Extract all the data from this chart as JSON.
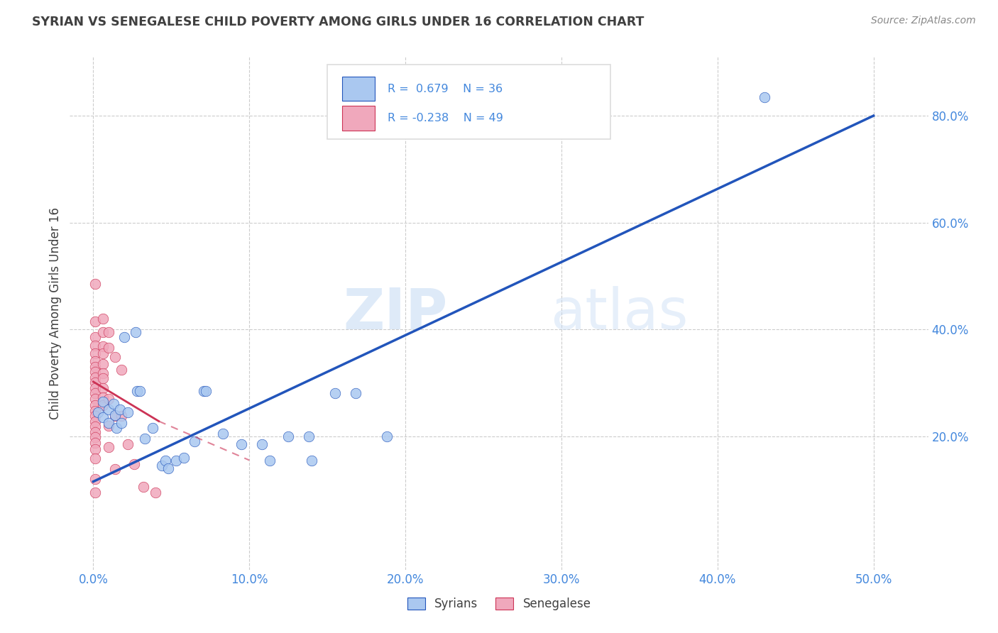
{
  "title": "SYRIAN VS SENEGALESE CHILD POVERTY AMONG GIRLS UNDER 16 CORRELATION CHART",
  "source": "Source: ZipAtlas.com",
  "ylabel": "Child Poverty Among Girls Under 16",
  "x_tick_labels": [
    "0.0%",
    "10.0%",
    "20.0%",
    "30.0%",
    "40.0%",
    "50.0%"
  ],
  "x_tick_values": [
    0.0,
    0.1,
    0.2,
    0.3,
    0.4,
    0.5
  ],
  "y_tick_labels": [
    "20.0%",
    "40.0%",
    "60.0%",
    "80.0%"
  ],
  "y_tick_values": [
    0.2,
    0.4,
    0.6,
    0.8
  ],
  "xlim": [
    -0.015,
    0.535
  ],
  "ylim": [
    -0.05,
    0.91
  ],
  "syrian_color": "#aac8f0",
  "senegalese_color": "#f0a8bc",
  "syrian_line_color": "#2255bb",
  "senegalese_line_color": "#cc3355",
  "watermark_zip": "ZIP",
  "watermark_atlas": "atlas",
  "background_color": "#ffffff",
  "grid_color": "#cccccc",
  "title_color": "#404040",
  "axis_color": "#4488dd",
  "legend_box_color": "#dddddd",
  "syrian_scatter": [
    [
      0.003,
      0.245
    ],
    [
      0.006,
      0.265
    ],
    [
      0.006,
      0.235
    ],
    [
      0.01,
      0.25
    ],
    [
      0.01,
      0.225
    ],
    [
      0.013,
      0.26
    ],
    [
      0.014,
      0.24
    ],
    [
      0.015,
      0.215
    ],
    [
      0.017,
      0.25
    ],
    [
      0.018,
      0.225
    ],
    [
      0.02,
      0.385
    ],
    [
      0.022,
      0.245
    ],
    [
      0.027,
      0.395
    ],
    [
      0.028,
      0.285
    ],
    [
      0.03,
      0.285
    ],
    [
      0.033,
      0.195
    ],
    [
      0.038,
      0.215
    ],
    [
      0.044,
      0.145
    ],
    [
      0.046,
      0.155
    ],
    [
      0.048,
      0.14
    ],
    [
      0.053,
      0.155
    ],
    [
      0.058,
      0.16
    ],
    [
      0.065,
      0.19
    ],
    [
      0.071,
      0.285
    ],
    [
      0.072,
      0.285
    ],
    [
      0.083,
      0.205
    ],
    [
      0.095,
      0.185
    ],
    [
      0.108,
      0.185
    ],
    [
      0.113,
      0.155
    ],
    [
      0.125,
      0.2
    ],
    [
      0.138,
      0.2
    ],
    [
      0.14,
      0.155
    ],
    [
      0.155,
      0.28
    ],
    [
      0.168,
      0.28
    ],
    [
      0.188,
      0.2
    ],
    [
      0.43,
      0.835
    ]
  ],
  "senegalese_scatter": [
    [
      0.001,
      0.485
    ],
    [
      0.001,
      0.415
    ],
    [
      0.001,
      0.385
    ],
    [
      0.001,
      0.37
    ],
    [
      0.001,
      0.355
    ],
    [
      0.001,
      0.34
    ],
    [
      0.001,
      0.33
    ],
    [
      0.001,
      0.32
    ],
    [
      0.001,
      0.31
    ],
    [
      0.001,
      0.3
    ],
    [
      0.001,
      0.29
    ],
    [
      0.001,
      0.28
    ],
    [
      0.001,
      0.27
    ],
    [
      0.001,
      0.258
    ],
    [
      0.001,
      0.248
    ],
    [
      0.001,
      0.238
    ],
    [
      0.001,
      0.228
    ],
    [
      0.001,
      0.218
    ],
    [
      0.001,
      0.208
    ],
    [
      0.001,
      0.198
    ],
    [
      0.001,
      0.188
    ],
    [
      0.001,
      0.175
    ],
    [
      0.001,
      0.158
    ],
    [
      0.001,
      0.12
    ],
    [
      0.001,
      0.095
    ],
    [
      0.006,
      0.42
    ],
    [
      0.006,
      0.395
    ],
    [
      0.006,
      0.368
    ],
    [
      0.006,
      0.355
    ],
    [
      0.006,
      0.335
    ],
    [
      0.006,
      0.318
    ],
    [
      0.006,
      0.308
    ],
    [
      0.006,
      0.29
    ],
    [
      0.006,
      0.272
    ],
    [
      0.006,
      0.258
    ],
    [
      0.01,
      0.395
    ],
    [
      0.01,
      0.365
    ],
    [
      0.01,
      0.27
    ],
    [
      0.01,
      0.22
    ],
    [
      0.01,
      0.18
    ],
    [
      0.014,
      0.348
    ],
    [
      0.014,
      0.238
    ],
    [
      0.014,
      0.138
    ],
    [
      0.018,
      0.325
    ],
    [
      0.018,
      0.238
    ],
    [
      0.022,
      0.185
    ],
    [
      0.026,
      0.148
    ],
    [
      0.032,
      0.105
    ],
    [
      0.04,
      0.095
    ]
  ],
  "syrian_trendline_x": [
    0.0,
    0.5
  ],
  "syrian_trendline_y": [
    0.115,
    0.8
  ],
  "senegalese_trendline_x": [
    0.0,
    0.042
  ],
  "senegalese_trendline_y": [
    0.302,
    0.228
  ]
}
